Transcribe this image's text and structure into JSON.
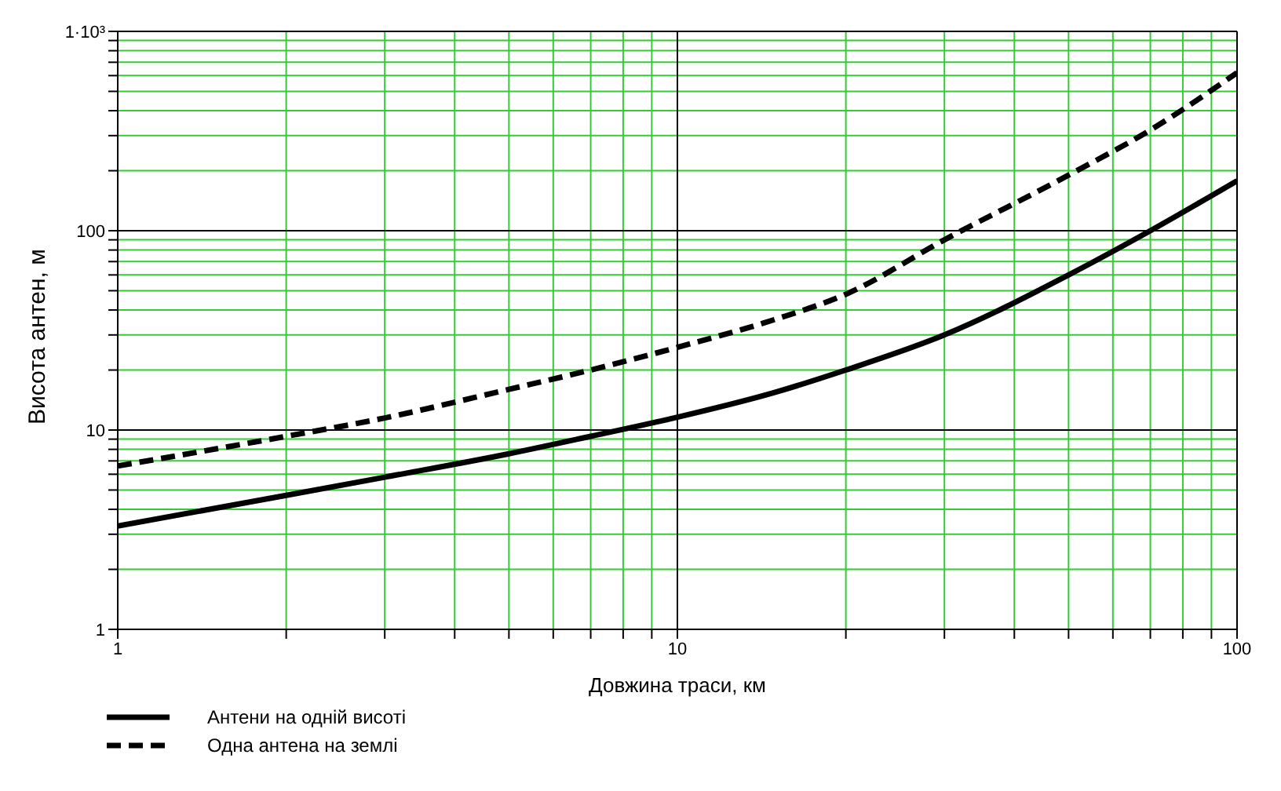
{
  "chart_data": {
    "type": "line",
    "xlabel": "Довжина траси, км",
    "ylabel": "Висота антен, м",
    "log": "xy",
    "grid": true,
    "legend": "bottom left",
    "marker": "none",
    "xlim": [
      1,
      100
    ],
    "ylim": [
      1,
      1000
    ],
    "xticks": [
      1,
      {
        "value": 2,
        "label": null
      },
      {
        "value": 3,
        "label": null
      },
      {
        "value": 4,
        "label": null
      },
      {
        "value": 5,
        "label": null
      },
      {
        "value": 6,
        "label": null
      },
      {
        "value": 7,
        "label": null
      },
      {
        "value": 8,
        "label": null
      },
      {
        "value": 9,
        "label": null
      },
      10,
      {
        "value": 20,
        "label": null
      },
      {
        "value": 30,
        "label": null
      },
      {
        "value": 40,
        "label": null
      },
      {
        "value": 50,
        "label": null
      },
      {
        "value": 60,
        "label": null
      },
      {
        "value": 70,
        "label": null
      },
      {
        "value": 80,
        "label": null
      },
      {
        "value": 90,
        "label": null
      },
      100
    ],
    "yticks": [
      1,
      {
        "value": 2,
        "label": null
      },
      {
        "value": 3,
        "label": null
      },
      {
        "value": 4,
        "label": null
      },
      {
        "value": 5,
        "label": null
      },
      {
        "value": 6,
        "label": null
      },
      {
        "value": 7,
        "label": null
      },
      {
        "value": 8,
        "label": null
      },
      {
        "value": 9,
        "label": null
      },
      10,
      {
        "value": 20,
        "label": null
      },
      {
        "value": 30,
        "label": null
      },
      {
        "value": 40,
        "label": null
      },
      {
        "value": 50,
        "label": null
      },
      {
        "value": 60,
        "label": null
      },
      {
        "value": 70,
        "label": null
      },
      {
        "value": 80,
        "label": null
      },
      {
        "value": 90,
        "label": null
      },
      100,
      {
        "value": 200,
        "label": null
      },
      {
        "value": 300,
        "label": null
      },
      {
        "value": 400,
        "label": null
      },
      {
        "value": 500,
        "label": null
      },
      {
        "value": 600,
        "label": null
      },
      {
        "value": 700,
        "label": null
      },
      {
        "value": 800,
        "label": null
      },
      {
        "value": 900,
        "label": null
      },
      {
        "value": 1000,
        "label": "1·10³"
      }
    ],
    "x": [
      1,
      2,
      3,
      5,
      7,
      10,
      15,
      20,
      30,
      50,
      70,
      100
    ],
    "series": [
      {
        "name": "Антени на одній висоті",
        "color": "#000000",
        "line_style": "solid",
        "values": [
          3.3,
          4.7,
          5.8,
          7.6,
          9.3,
          11.6,
          15.5,
          20,
          30,
          60,
          100,
          178
        ]
      },
      {
        "name": "Одна антена на землі",
        "color": "#000000",
        "line_style": "dashed",
        "values": [
          6.6,
          9.3,
          11.5,
          16,
          20,
          26,
          36,
          48,
          90,
          190,
          320,
          620
        ]
      }
    ]
  }
}
